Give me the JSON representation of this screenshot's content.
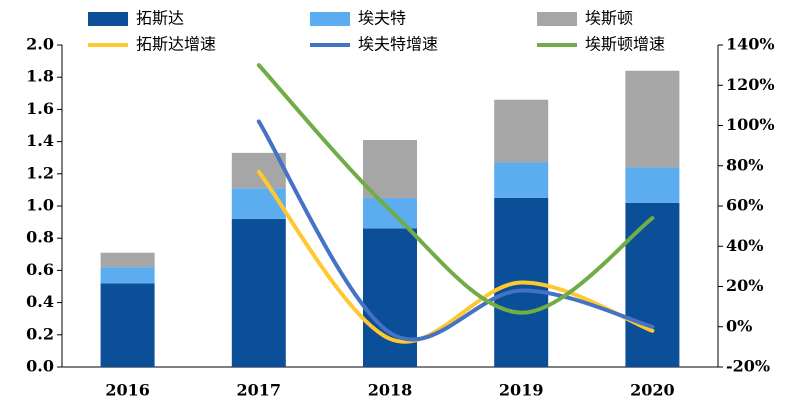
{
  "chart_data": {
    "type": "bar",
    "categories": [
      "2016",
      "2017",
      "2018",
      "2019",
      "2020"
    ],
    "stacked": true,
    "series": [
      {
        "name": "拓斯达",
        "color": "#0a4f97",
        "values": [
          0.52,
          0.92,
          0.86,
          1.05,
          1.02
        ]
      },
      {
        "name": "埃夫特",
        "color": "#5badf0",
        "values": [
          0.1,
          0.19,
          0.19,
          0.22,
          0.22
        ]
      },
      {
        "name": "埃斯顿",
        "color": "#a6a6a6",
        "values": [
          0.09,
          0.22,
          0.36,
          0.39,
          0.6
        ]
      },
      {
        "name": "拓斯达增速",
        "color": "#ffc82e",
        "type": "line",
        "axis": "y2",
        "smooth": true,
        "values": [
          null,
          77,
          -6,
          22,
          -2
        ]
      },
      {
        "name": "埃夫特增速",
        "color": "#4472c4",
        "type": "line",
        "axis": "y2",
        "smooth": true,
        "values": [
          null,
          102,
          -3,
          18,
          0
        ]
      },
      {
        "name": "埃斯顿增速",
        "color": "#70ad47",
        "type": "line",
        "axis": "y2",
        "smooth": true,
        "values": [
          null,
          130,
          58,
          7,
          54
        ]
      }
    ],
    "ylim": [
      0,
      2
    ],
    "yticks": [
      {
        "value": 0,
        "label": "0.0"
      },
      0.2,
      0.4,
      0.6,
      0.8,
      {
        "value": 1,
        "label": "1.0"
      },
      1.2,
      1.4,
      1.6,
      1.8,
      {
        "value": 2,
        "label": "2.0"
      }
    ],
    "y2lim": [
      -20,
      140
    ],
    "y2ticks": [
      {
        "value": -20,
        "label": "-20%"
      },
      {
        "value": 0,
        "label": "0%"
      },
      {
        "value": 20,
        "label": "20%"
      },
      {
        "value": 40,
        "label": "40%"
      },
      {
        "value": 60,
        "label": "60%"
      },
      {
        "value": 80,
        "label": "80%"
      },
      {
        "value": 100,
        "label": "100%"
      },
      {
        "value": 120,
        "label": "120%"
      },
      {
        "value": 140,
        "label": "140%"
      }
    ]
  }
}
